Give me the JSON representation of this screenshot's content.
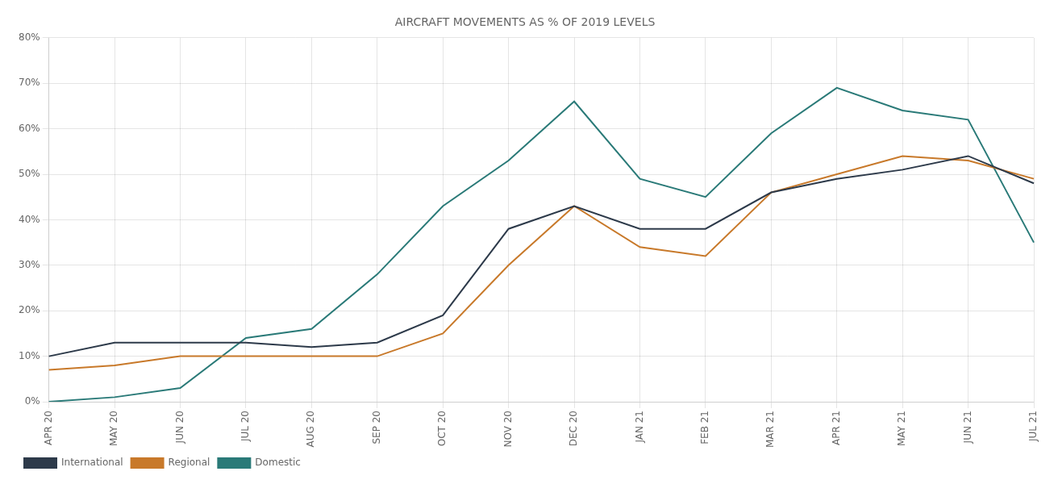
{
  "chart_data": {
    "type": "line",
    "title": "AIRCRAFT MOVEMENTS AS % OF 2019 LEVELS",
    "categories": [
      "APR 20",
      "MAY 20",
      "JUN 20",
      "JUL 20",
      "AUG 20",
      "SEP 20",
      "OCT 20",
      "NOV 20",
      "DEC 20",
      "JAN 21",
      "FEB 21",
      "MAR 21",
      "APR 21",
      "MAY 21",
      "JUN 21",
      "JUL 21"
    ],
    "series": [
      {
        "name": "International",
        "color": "#2d3a4a",
        "values": [
          0.1,
          0.13,
          0.13,
          0.13,
          0.12,
          0.13,
          0.19,
          0.38,
          0.43,
          0.38,
          0.38,
          0.46,
          0.49,
          0.51,
          0.54,
          0.48
        ]
      },
      {
        "name": "Regional",
        "color": "#c8792a",
        "values": [
          0.07,
          0.08,
          0.1,
          0.1,
          0.1,
          0.1,
          0.15,
          0.3,
          0.43,
          0.34,
          0.32,
          0.46,
          0.5,
          0.54,
          0.53,
          0.49
        ]
      },
      {
        "name": "Domestic",
        "color": "#2a7a78",
        "values": [
          0.0,
          0.01,
          0.03,
          0.14,
          0.16,
          0.28,
          0.43,
          0.53,
          0.66,
          0.49,
          0.45,
          0.59,
          0.69,
          0.64,
          0.62,
          0.35
        ]
      }
    ],
    "ylim": [
      0,
      0.8
    ],
    "yticks": [
      {
        "value": 0.0,
        "label": "0%"
      },
      {
        "value": 0.1,
        "label": "10%"
      },
      {
        "value": 0.2,
        "label": "20%"
      },
      {
        "value": 0.3,
        "label": "30%"
      },
      {
        "value": 0.4,
        "label": "40%"
      },
      {
        "value": 0.5,
        "label": "50%"
      },
      {
        "value": 0.6,
        "label": "60%"
      },
      {
        "value": 0.7,
        "label": "70%"
      },
      {
        "value": 0.8,
        "label": "80%"
      }
    ],
    "grid": true,
    "legend": "bottom"
  }
}
